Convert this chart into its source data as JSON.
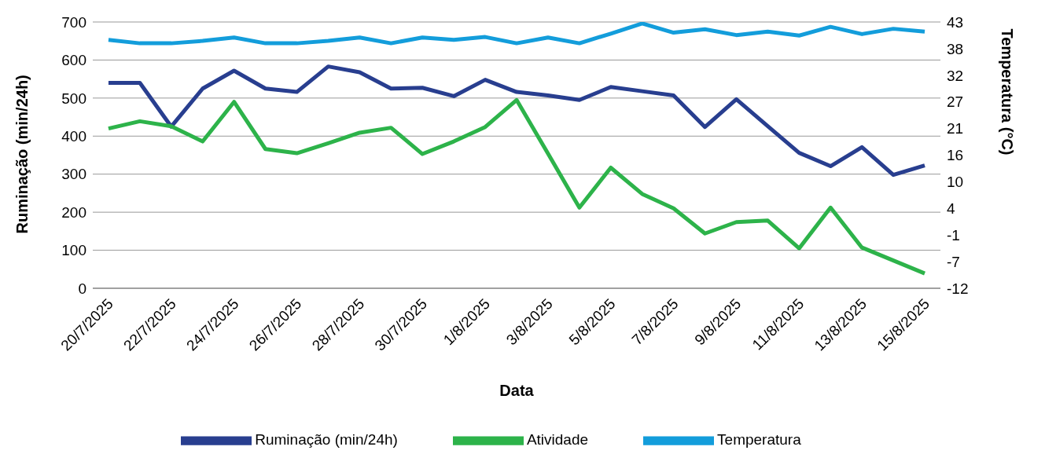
{
  "chart_data": {
    "type": "line",
    "xlabel": "Data",
    "ylabel": "Ruminação (min/24h)",
    "y2label": "Temperatura (°C)",
    "categories": [
      "20/7/2025",
      null,
      "22/7/2025",
      null,
      "24/7/2025",
      null,
      "26/7/2025",
      null,
      "28/7/2025",
      null,
      "30/7/2025",
      null,
      "1/8/2025",
      null,
      "3/8/2025",
      null,
      "5/8/2025",
      null,
      "7/8/2025",
      null,
      "9/8/2025",
      null,
      "11/8/2025",
      null,
      "13/8/2025",
      null,
      "15/8/2025"
    ],
    "series": [
      {
        "name": "Ruminação (min/24h)",
        "color": "#283e8f",
        "values": [
          540,
          540,
          425,
          525,
          572,
          525,
          516,
          583,
          568,
          525,
          527,
          505,
          548,
          516,
          507,
          495,
          529,
          518,
          507,
          424,
          497,
          426,
          356,
          321,
          371,
          298,
          323
        ]
      },
      {
        "name": "Atividade",
        "color": "#2db34a",
        "values": [
          420,
          439,
          426,
          386,
          490,
          366,
          355,
          381,
          409,
          422,
          353,
          386,
          424,
          495,
          354,
          212,
          317,
          248,
          210,
          144,
          174,
          178,
          105,
          212,
          107,
          73,
          39
        ]
      },
      {
        "name": "Temperatura",
        "color": "#139ddb",
        "axis": "y2",
        "values": [
          39.3,
          38.6,
          38.6,
          39.1,
          39.8,
          38.6,
          38.6,
          39.1,
          39.8,
          38.6,
          39.8,
          39.3,
          39.9,
          38.6,
          39.8,
          38.6,
          40.6,
          42.7,
          40.8,
          41.5,
          40.3,
          41.0,
          40.2,
          42.0,
          40.5,
          41.6,
          41.0
        ]
      }
    ],
    "ylim": [
      0,
      700
    ],
    "yticks": [
      0,
      100,
      200,
      300,
      400,
      500,
      600,
      700
    ],
    "y2lim": [
      -12,
      43
    ],
    "y2ticks": [
      -12,
      {
        "value": -6.5,
        "label": "-7"
      },
      -1,
      {
        "value": 4.5,
        "label": "4"
      },
      10,
      {
        "value": 15.5,
        "label": "16"
      },
      21,
      {
        "value": 26.5,
        "label": "27"
      },
      32,
      {
        "value": 37.5,
        "label": "38"
      },
      43
    ],
    "grid": "y",
    "legend": "bottom",
    "marker": "none",
    "line_style": "solid"
  }
}
